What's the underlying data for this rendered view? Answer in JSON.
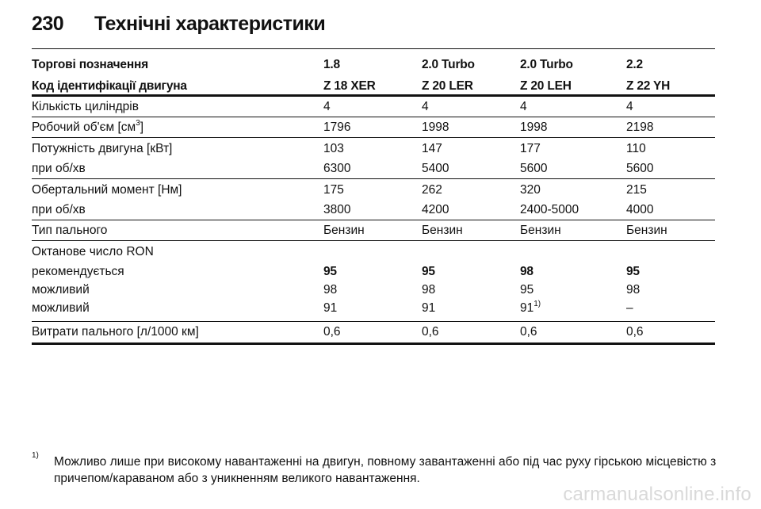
{
  "header": {
    "page_number": "230",
    "title": "Технічні характеристики"
  },
  "table": {
    "header_rows": [
      {
        "label": "Торгові позначення",
        "values": [
          "1.8",
          "2.0 Turbo",
          "2.0 Turbo",
          "2.2"
        ]
      },
      {
        "label": "Код ідентифікації двигуна",
        "values": [
          "Z 18 XER",
          "Z 20 LER",
          "Z 20 LEH",
          "Z 22 YH"
        ]
      }
    ],
    "cylinders": {
      "label": "Кількість циліндрів",
      "values": [
        "4",
        "4",
        "4",
        "4"
      ]
    },
    "displacement": {
      "label_prefix": "Робочий об'єм [см",
      "label_sup": "3",
      "label_suffix": "]",
      "values": [
        "1796",
        "1998",
        "1998",
        "2198"
      ]
    },
    "power": {
      "label": "Потужність двигуна [кВт]",
      "values": [
        "103",
        "147",
        "177",
        "110"
      ]
    },
    "power_rpm": {
      "label": "при об/хв",
      "values": [
        "6300",
        "5400",
        "5600",
        "5600"
      ]
    },
    "torque": {
      "label": "Обертальний момент [Нм]",
      "values": [
        "175",
        "262",
        "320",
        "215"
      ]
    },
    "torque_rpm": {
      "label": "при об/хв",
      "values": [
        "3800",
        "4200",
        "2400-5000",
        "4000"
      ]
    },
    "fuel_type": {
      "label": "Тип пального",
      "values": [
        "Бензин",
        "Бензин",
        "Бензин",
        "Бензин"
      ]
    },
    "octane": {
      "label": "Октанове число RON"
    },
    "recommended": {
      "label": "рекомендується",
      "values": [
        "95",
        "95",
        "98",
        "95"
      ]
    },
    "possible1": {
      "label": "можливий",
      "values": [
        "98",
        "98",
        "95",
        "98"
      ]
    },
    "possible2": {
      "label": "можливий",
      "values": [
        "91",
        "91",
        "91",
        "–"
      ],
      "c3_sup": "1)"
    },
    "consumption": {
      "label": "Витрати пального [л/1000 км]",
      "values": [
        "0,6",
        "0,6",
        "0,6",
        "0,6"
      ]
    }
  },
  "footnote": {
    "marker": "1)",
    "text": "Можливо лише при високому навантаженні на двигун, повному завантаженні або під час руху гірською місцевістю з причепом/караваном або з уникненням великого навантаження."
  },
  "watermark": "carmanualsonline.info"
}
